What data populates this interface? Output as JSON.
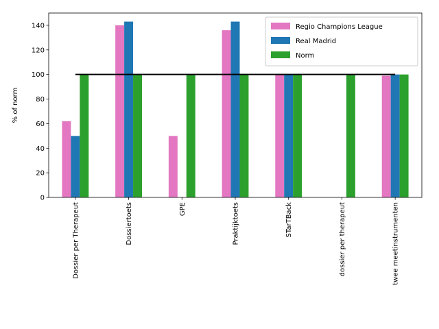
{
  "chart_data": {
    "type": "bar",
    "categories": [
      "Dossier per Therapeut",
      "Dossiertoets",
      "GPE",
      "Praktijktoets",
      "STarTBack",
      "dossier per therapeut",
      "twee meetinstrumenten"
    ],
    "series": [
      {
        "name": "Regio Champions League",
        "color": "#e377c2",
        "values": [
          62,
          140,
          50,
          136,
          100,
          0,
          99
        ]
      },
      {
        "name": "Real Madrid",
        "color": "#1f77b4",
        "values": [
          50,
          143,
          0,
          143,
          100,
          0,
          100
        ]
      },
      {
        "name": "Norm",
        "color": "#2ca02c",
        "values": [
          100,
          100,
          100,
          100,
          100,
          100,
          100
        ]
      }
    ],
    "reference_line": {
      "value": 100,
      "color": "#000000"
    },
    "title": "",
    "xlabel": "",
    "ylabel": "% of norm",
    "ylim": [
      0,
      150
    ],
    "yticks": [
      0,
      20,
      40,
      60,
      80,
      100,
      120,
      140
    ],
    "grid": false,
    "legend_position": "top-right"
  }
}
